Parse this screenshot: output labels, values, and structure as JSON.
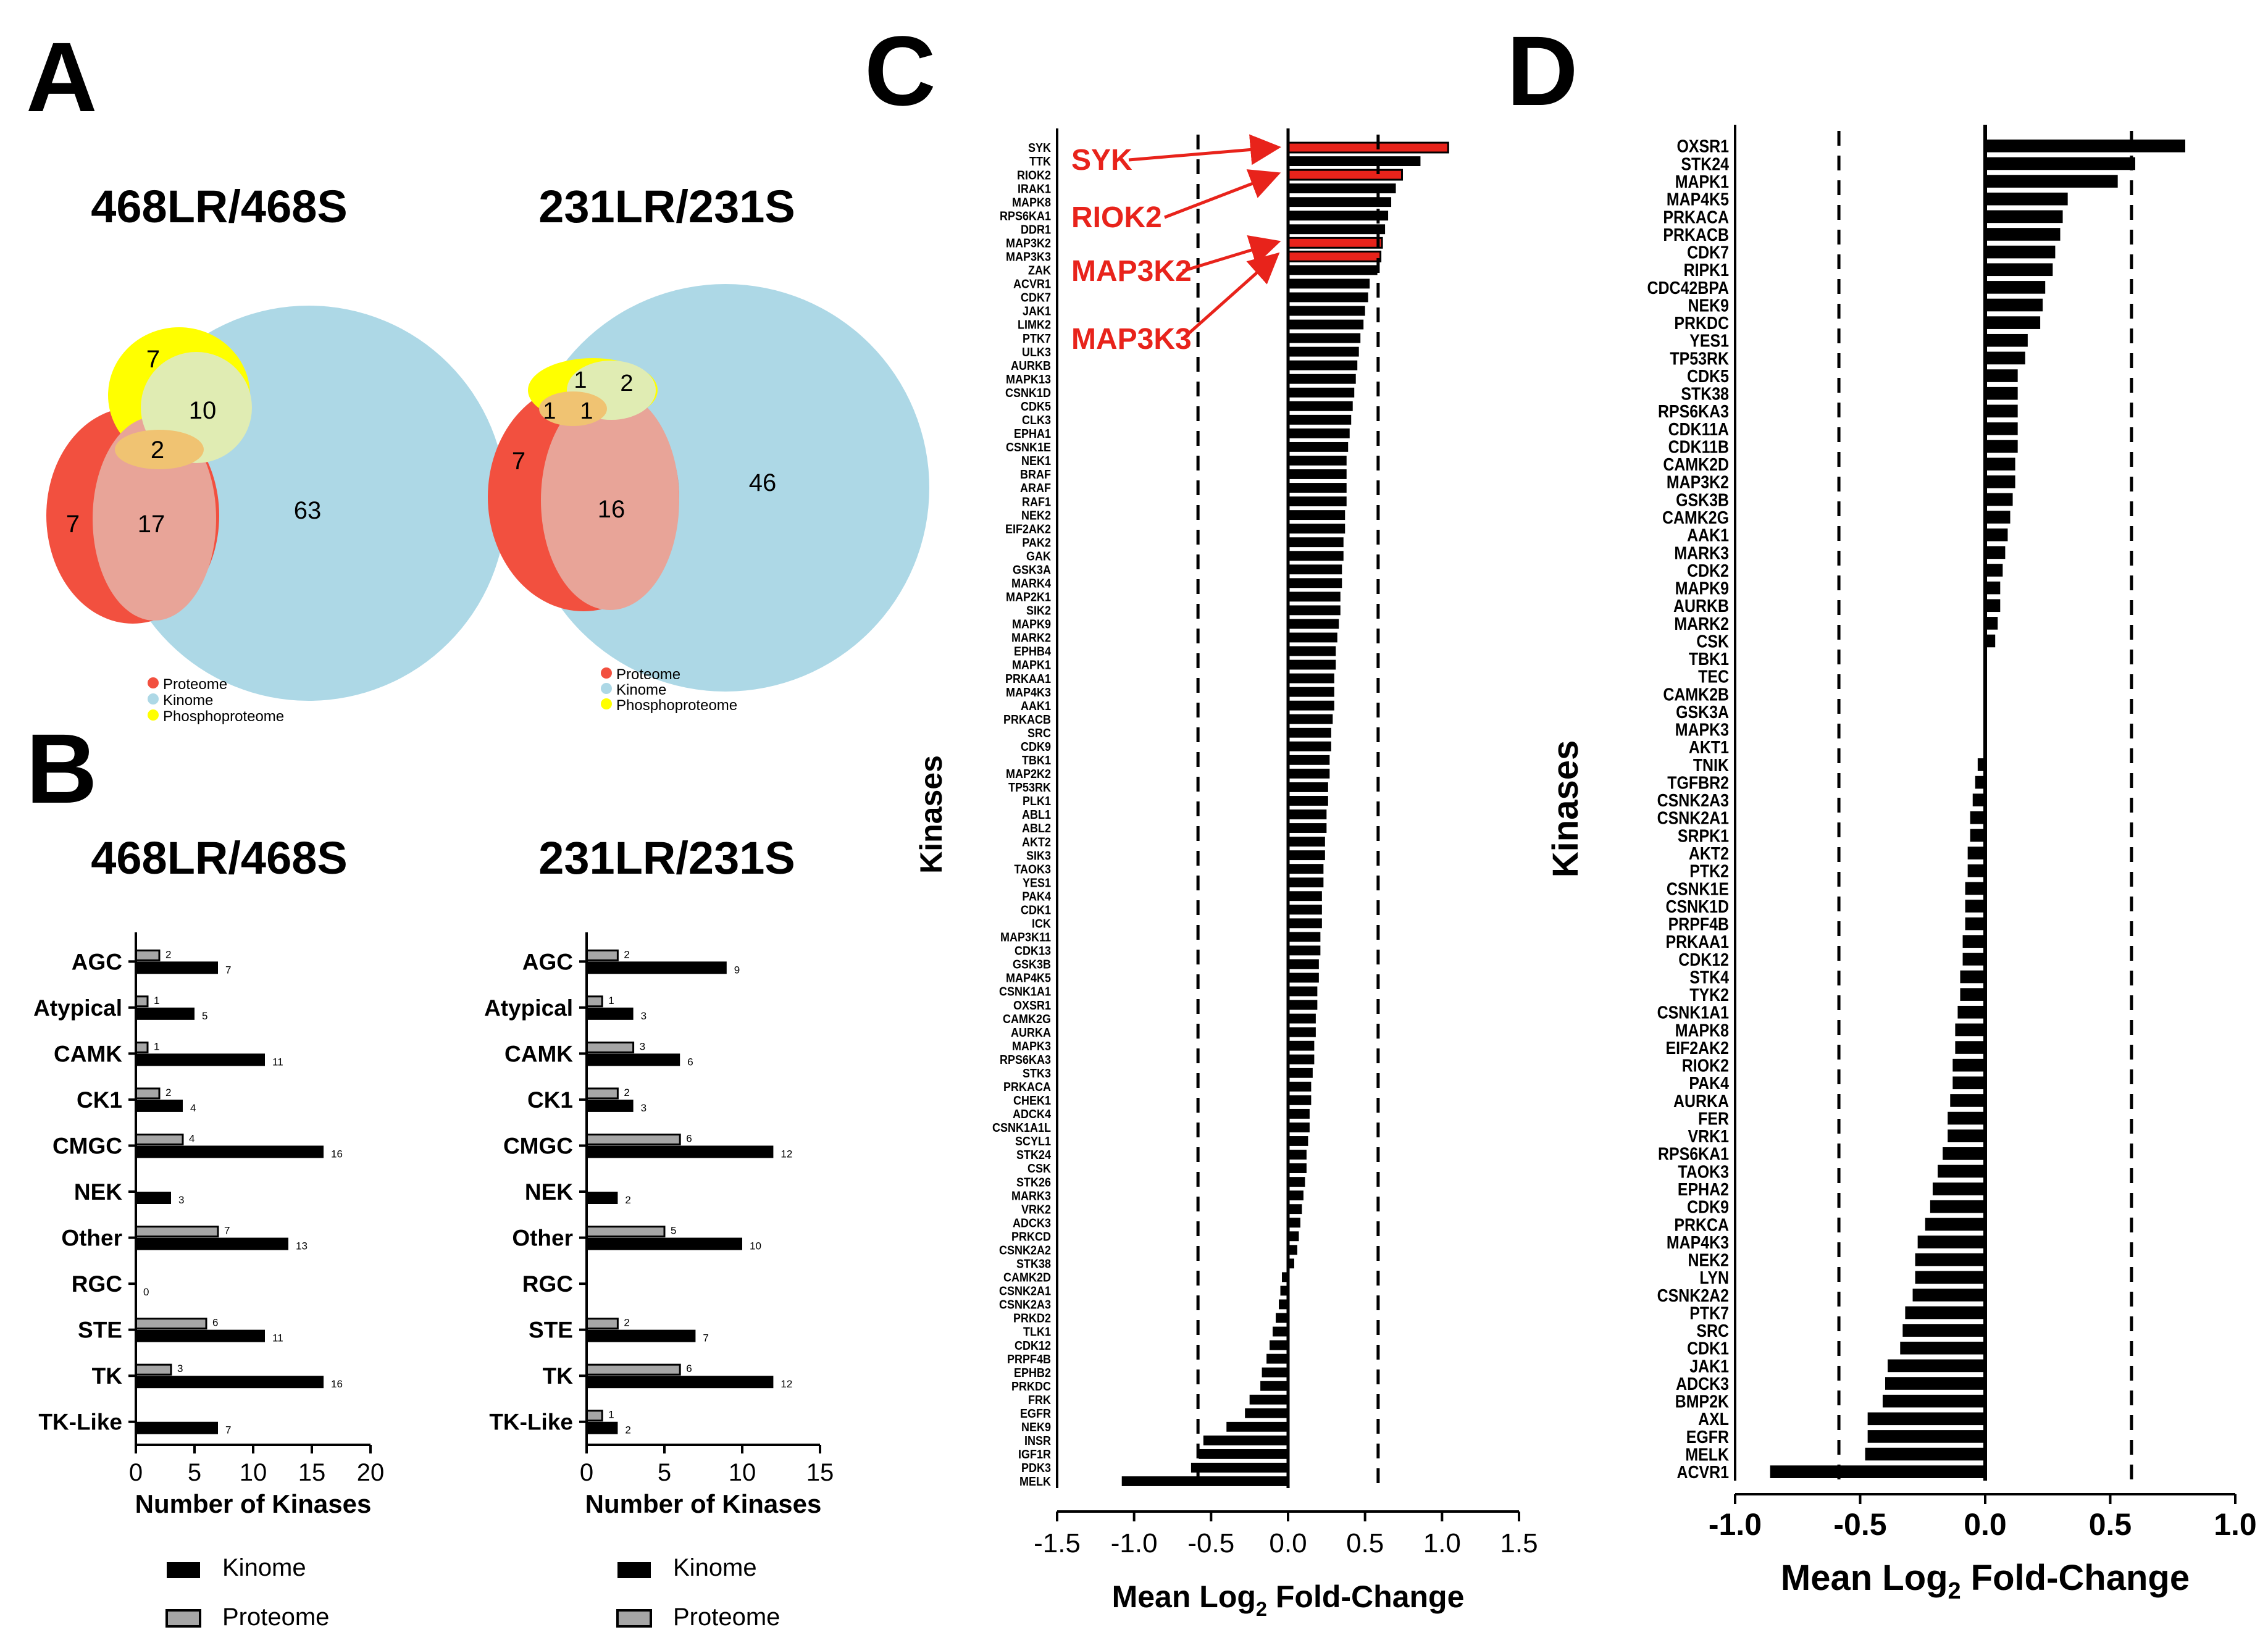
{
  "panel_letters": {
    "a": "A",
    "b": "B",
    "c": "C",
    "d": "D"
  },
  "venn": [
    {
      "title": "468LR/468S",
      "regions": {
        "phospho_only": "7",
        "phospho_kinome": "10",
        "all_three": "2",
        "proteome_only": "7",
        "proteome_kinome": "17",
        "kinome_only": "63"
      },
      "legend": [
        "Proteome",
        "Kinome",
        "Phosphoproteome"
      ]
    },
    {
      "title": "231LR/231S",
      "regions": {
        "phospho_only": "1",
        "phospho_kinome": "2",
        "phospho_proteome": "1",
        "all_three": "1",
        "proteome_only": "7",
        "proteome_kinome": "16",
        "kinome_only": "46"
      },
      "legend": [
        "Proteome",
        "Kinome",
        "Phosphoproteome"
      ]
    }
  ],
  "colors": {
    "proteome": "#F2503F",
    "kinome": "#ADD8E6",
    "phospho": "#FFFF00",
    "highlight": "#E8231B",
    "bar_black": "#000000",
    "bar_gray": "#A6A6A6"
  },
  "chart_data": [
    {
      "id": "B1",
      "type": "bar",
      "orientation": "horizontal",
      "title": "468LR/468S",
      "categories": [
        "AGC",
        "Atypical",
        "CAMK",
        "CK1",
        "CMGC",
        "NEK",
        "Other",
        "RGC",
        "STE",
        "TK",
        "TK-Like"
      ],
      "series": [
        {
          "name": "Kinome",
          "values": [
            7,
            5,
            11,
            4,
            16,
            3,
            13,
            0,
            11,
            16,
            7
          ],
          "labels": [
            "7",
            "5",
            "11",
            "4",
            "16",
            "3",
            "13",
            "0",
            "11",
            "16",
            "7"
          ]
        },
        {
          "name": "Proteome",
          "values": [
            2,
            1,
            1,
            2,
            4,
            null,
            7,
            null,
            6,
            3,
            null
          ],
          "labels": [
            "2",
            "1",
            "1",
            "2",
            "4",
            "",
            "7",
            "",
            "6",
            "3",
            ""
          ]
        }
      ],
      "xlabel": "Number of Kinases",
      "xlim": [
        0,
        20
      ],
      "xticks": [
        "0",
        "5",
        "10",
        "15",
        "20"
      ],
      "legend": [
        "Kinome",
        "Proteome"
      ]
    },
    {
      "id": "B2",
      "type": "bar",
      "orientation": "horizontal",
      "title": "231LR/231S",
      "categories": [
        "AGC",
        "Atypical",
        "CAMK",
        "CK1",
        "CMGC",
        "NEK",
        "Other",
        "RGC",
        "STE",
        "TK",
        "TK-Like"
      ],
      "series": [
        {
          "name": "Kinome",
          "values": [
            9,
            3,
            6,
            3,
            12,
            2,
            10,
            null,
            7,
            12,
            2
          ],
          "labels": [
            "9",
            "3",
            "6",
            "3",
            "12",
            "2",
            "10",
            "",
            "7",
            "12",
            "2"
          ]
        },
        {
          "name": "Proteome",
          "values": [
            2,
            1,
            3,
            2,
            6,
            null,
            5,
            null,
            2,
            6,
            1
          ],
          "labels": [
            "2",
            "1",
            "3",
            "2",
            "6",
            "",
            "5",
            "",
            "2",
            "6",
            "1"
          ]
        }
      ],
      "xlabel": "Number of Kinases",
      "xlim": [
        0,
        15
      ],
      "xticks": [
        "0",
        "5",
        "10",
        "15"
      ],
      "legend": [
        "Kinome",
        "Proteome"
      ]
    },
    {
      "id": "C",
      "type": "bar",
      "orientation": "horizontal",
      "title": "",
      "ylabel": "Kinases",
      "xlabel_main": "Mean Log",
      "xlabel_sub": "2",
      "xlabel_tail": " Fold-Change",
      "xlim": [
        -1.5,
        1.5
      ],
      "xticks": [
        "-1.5",
        "-1.0",
        "-0.5",
        "0.0",
        "0.5",
        "1.0",
        "1.5"
      ],
      "thresholds": [
        -0.585,
        0.585
      ],
      "categories": [
        "SYK",
        "TTK",
        "RIOK2",
        "IRAK1",
        "MAPK8",
        "RPS6KA1",
        "DDR1",
        "MAP3K2",
        "MAP3K3",
        "ZAK",
        "ACVR1",
        "CDK7",
        "JAK1",
        "LIMK2",
        "PTK7",
        "ULK3",
        "AURKB",
        "MAPK13",
        "CSNK1D",
        "CDK5",
        "CLK3",
        "EPHA1",
        "CSNK1E",
        "NEK1",
        "BRAF",
        "ARAF",
        "RAF1",
        "NEK2",
        "EIF2AK2",
        "PAK2",
        "GAK",
        "GSK3A",
        "MARK4",
        "MAP2K1",
        "SIK2",
        "MAPK9",
        "MARK2",
        "EPHB4",
        "MAPK1",
        "PRKAA1",
        "MAP4K3",
        "AAK1",
        "PRKACB",
        "SRC",
        "CDK9",
        "TBK1",
        "MAP2K2",
        "TP53RK",
        "PLK1",
        "ABL1",
        "ABL2",
        "AKT2",
        "SIK3",
        "TAOK3",
        "YES1",
        "PAK4",
        "CDK1",
        "ICK",
        "MAP3K11",
        "CDK13",
        "GSK3B",
        "MAP4K5",
        "CSNK1A1",
        "OXSR1",
        "CAMK2G",
        "AURKA",
        "MAPK3",
        "RPS6KA3",
        "STK3",
        "PRKACA",
        "CHEK1",
        "ADCK4",
        "CSNK1A1L",
        "SCYL1",
        "STK24",
        "CSK",
        "STK26",
        "MARK3",
        "VRK2",
        "ADCK3",
        "PRKCD",
        "CSNK2A2",
        "STK38",
        "CAMK2D",
        "CSNK2A1",
        "CSNK2A3",
        "PRKD2",
        "TLK1",
        "CDK12",
        "PRPF4B",
        "EPHB2",
        "PRKDC",
        "FRK",
        "EGFR",
        "NEK9",
        "INSR",
        "IGF1R",
        "PDK3",
        "MELK"
      ],
      "values": [
        1.04,
        0.86,
        0.74,
        0.7,
        0.67,
        0.65,
        0.63,
        0.61,
        0.6,
        0.58,
        0.53,
        0.52,
        0.5,
        0.49,
        0.47,
        0.46,
        0.45,
        0.44,
        0.43,
        0.42,
        0.41,
        0.4,
        0.39,
        0.38,
        0.38,
        0.38,
        0.38,
        0.37,
        0.37,
        0.36,
        0.36,
        0.35,
        0.35,
        0.34,
        0.34,
        0.33,
        0.32,
        0.31,
        0.31,
        0.3,
        0.3,
        0.3,
        0.29,
        0.28,
        0.28,
        0.27,
        0.27,
        0.26,
        0.26,
        0.25,
        0.25,
        0.24,
        0.24,
        0.23,
        0.23,
        0.22,
        0.22,
        0.22,
        0.21,
        0.21,
        0.2,
        0.2,
        0.19,
        0.19,
        0.18,
        0.18,
        0.17,
        0.17,
        0.16,
        0.15,
        0.15,
        0.14,
        0.14,
        0.13,
        0.12,
        0.12,
        0.11,
        0.1,
        0.09,
        0.08,
        0.07,
        0.06,
        0.04,
        -0.04,
        -0.05,
        -0.06,
        -0.08,
        -0.1,
        -0.12,
        -0.14,
        -0.17,
        -0.18,
        -0.25,
        -0.28,
        -0.4,
        -0.55,
        -0.58,
        -0.63,
        -1.08
      ],
      "highlighted": [
        "SYK",
        "RIOK2",
        "MAP3K2",
        "MAP3K3"
      ],
      "annotations": [
        "SYK",
        "RIOK2",
        "MAP3K2",
        "MAP3K3"
      ]
    },
    {
      "id": "D",
      "type": "bar",
      "orientation": "horizontal",
      "title": "",
      "ylabel": "Kinases",
      "xlabel_main": "Mean Log",
      "xlabel_sub": "2",
      "xlabel_tail": " Fold-Change",
      "xlim": [
        -1.0,
        1.0
      ],
      "xticks": [
        "-1.0",
        "-0.5",
        "0.0",
        "0.5",
        "1.0"
      ],
      "thresholds": [
        -0.585,
        0.585
      ],
      "categories": [
        "OXSR1",
        "STK24",
        "MAPK1",
        "MAP4K5",
        "PRKACA",
        "PRKACB",
        "CDK7",
        "RIPK1",
        "CDC42BPA",
        "NEK9",
        "PRKDC",
        "YES1",
        "TP53RK",
        "CDK5",
        "STK38",
        "RPS6KA3",
        "CDK11A",
        "CDK11B",
        "CAMK2D",
        "MAP3K2",
        "GSK3B",
        "CAMK2G",
        "AAK1",
        "MARK3",
        "CDK2",
        "MAPK9",
        "AURKB",
        "MARK2",
        "CSK",
        "TBK1",
        "TEC",
        "CAMK2B",
        "GSK3A",
        "MAPK3",
        "AKT1",
        "TNIK",
        "TGFBR2",
        "CSNK2A3",
        "CSNK2A1",
        "SRPK1",
        "AKT2",
        "PTK2",
        "CSNK1E",
        "CSNK1D",
        "PRPF4B",
        "PRKAA1",
        "CDK12",
        "STK4",
        "TYK2",
        "CSNK1A1",
        "MAPK8",
        "EIF2AK2",
        "RIOK2",
        "PAK4",
        "AURKA",
        "FER",
        "VRK1",
        "RPS6KA1",
        "TAOK3",
        "EPHA2",
        "CDK9",
        "PRKCA",
        "MAP4K3",
        "NEK2",
        "LYN",
        "CSNK2A2",
        "PTK7",
        "SRC",
        "CDK1",
        "JAK1",
        "ADCK3",
        "BMP2K",
        "AXL",
        "EGFR",
        "MELK",
        "ACVR1"
      ],
      "values": [
        0.8,
        0.6,
        0.53,
        0.33,
        0.31,
        0.3,
        0.28,
        0.27,
        0.24,
        0.23,
        0.22,
        0.17,
        0.16,
        0.13,
        0.13,
        0.13,
        0.13,
        0.13,
        0.12,
        0.12,
        0.11,
        0.1,
        0.09,
        0.08,
        0.07,
        0.06,
        0.06,
        0.05,
        0.04,
        0.0,
        0.0,
        0.0,
        0.0,
        0.0,
        0.0,
        -0.03,
        -0.04,
        -0.05,
        -0.06,
        -0.06,
        -0.07,
        -0.07,
        -0.08,
        -0.08,
        -0.08,
        -0.09,
        -0.09,
        -0.1,
        -0.1,
        -0.11,
        -0.12,
        -0.12,
        -0.13,
        -0.13,
        -0.14,
        -0.15,
        -0.15,
        -0.17,
        -0.19,
        -0.21,
        -0.22,
        -0.24,
        -0.27,
        -0.28,
        -0.28,
        -0.29,
        -0.32,
        -0.33,
        -0.34,
        -0.39,
        -0.4,
        -0.41,
        -0.47,
        -0.47,
        -0.48,
        -0.86
      ]
    }
  ]
}
